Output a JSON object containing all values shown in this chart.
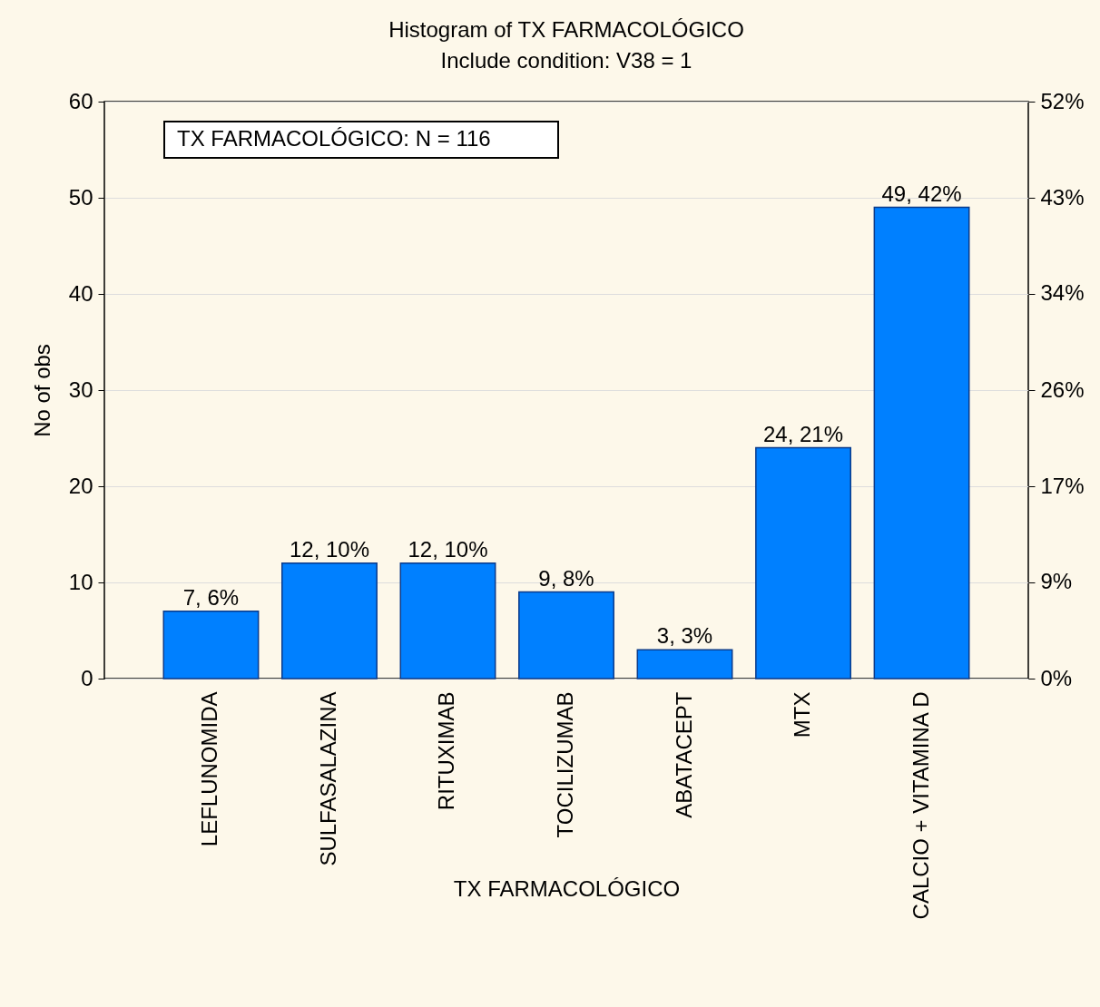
{
  "chart_data": {
    "type": "bar",
    "title": "Histogram of TX FARMACOLÓGICO",
    "subtitle": "Include condition: V38 = 1",
    "xlabel": "TX FARMACOLÓGICO",
    "ylabel": "No of obs",
    "categories": [
      "LEFLUNOMIDA",
      "SULFASALAZINA",
      "RITUXIMAB",
      "TOCILIZUMAB",
      "ABATACEPT",
      "MTX",
      "CALCIO + VITAMINA D"
    ],
    "values": [
      7,
      12,
      12,
      9,
      3,
      24,
      49
    ],
    "value_labels": [
      "7, 6%",
      "12, 10%",
      "12, 10%",
      "9, 8%",
      "3, 3%",
      "24, 21%",
      "49, 42%"
    ],
    "color": "#0080ff",
    "ylim": [
      0,
      60
    ],
    "yticks": [
      0,
      10,
      20,
      30,
      40,
      50,
      60
    ],
    "y2lim": [
      0,
      51.724
    ],
    "y2ticks": [
      {
        "value": 0,
        "label": "0%"
      },
      {
        "value": 8.621,
        "label": "9%"
      },
      {
        "value": 17.241,
        "label": "17%"
      },
      {
        "value": 25.862,
        "label": "26%"
      },
      {
        "value": 34.483,
        "label": "34%"
      },
      {
        "value": 43.103,
        "label": "43%"
      },
      {
        "value": 51.724,
        "label": "52%"
      }
    ],
    "annotations": [
      "TX FARMACOLÓGICO:  N = 116"
    ],
    "grid": "y"
  }
}
